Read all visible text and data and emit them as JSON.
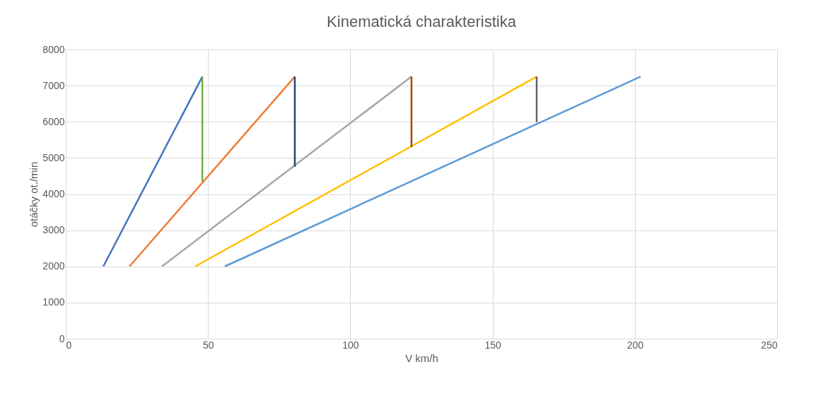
{
  "chart_data": {
    "type": "line",
    "title": "Kinematická charakteristika",
    "xlabel": "V km/h",
    "ylabel": "otáčky ot./min",
    "xlim": [
      0,
      250
    ],
    "xticks": [
      0,
      50,
      100,
      150,
      200,
      250
    ],
    "ylim": [
      0,
      8000
    ],
    "yticks": [
      0,
      1000,
      2000,
      3000,
      4000,
      5000,
      6000,
      7000,
      8000
    ],
    "grid": true,
    "legend": false,
    "marker": "none",
    "line_style": "solid",
    "series": [
      {
        "color": "#4472c4",
        "x": [
          13.2,
          48.0
        ],
        "values": [
          2000,
          7250
        ]
      },
      {
        "color": "#ed7d31",
        "x": [
          22.4,
          80.5
        ],
        "values": [
          2000,
          7250
        ]
      },
      {
        "color": "#a5a5a5",
        "x": [
          33.8,
          121.5
        ],
        "values": [
          2000,
          7250
        ]
      },
      {
        "color": "#ffc000",
        "x": [
          45.5,
          165.5
        ],
        "values": [
          2000,
          7250
        ]
      },
      {
        "color": "#5b9bd5",
        "x": [
          55.9,
          202.0
        ],
        "values": [
          2000,
          7250
        ]
      },
      {
        "color": "#70ad47",
        "x": [
          48.0,
          48.0
        ],
        "values": [
          7250,
          4350
        ]
      },
      {
        "color": "#264478",
        "x": [
          80.5,
          80.5
        ],
        "values": [
          7250,
          4760
        ]
      },
      {
        "color": "#9e480e",
        "x": [
          121.5,
          121.5
        ],
        "values": [
          7250,
          5300
        ]
      },
      {
        "color": "#636363",
        "x": [
          165.5,
          165.5
        ],
        "values": [
          7250,
          5990
        ]
      }
    ]
  }
}
